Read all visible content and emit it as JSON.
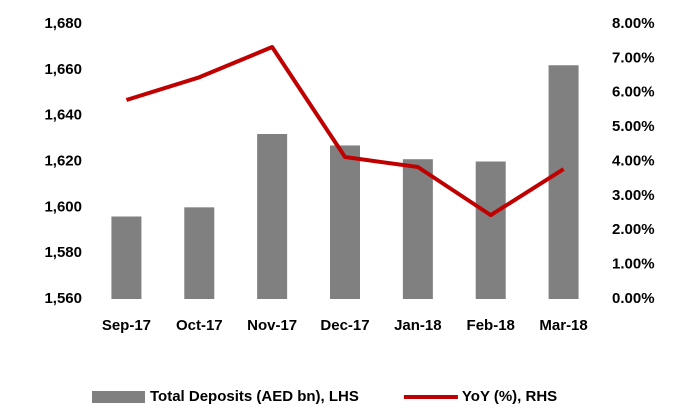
{
  "chart_data": {
    "type": "bar",
    "categories": [
      "Sep-17",
      "Oct-17",
      "Nov-17",
      "Dec-17",
      "Jan-18",
      "Feb-18",
      "Mar-18"
    ],
    "series": [
      {
        "name": "Total Deposits (AED bn), LHS",
        "type": "bar",
        "color": "#808080",
        "axis": "y",
        "values": [
          1596,
          1600,
          1632,
          1627,
          1621,
          1620,
          1662
        ]
      },
      {
        "name": "YoY (%), RHS",
        "type": "line",
        "color": "#c00000",
        "axis": "y2",
        "values": [
          5.79,
          6.45,
          7.33,
          4.13,
          3.84,
          2.44,
          3.78
        ]
      }
    ],
    "ylim": [
      1560,
      1680
    ],
    "yticks": [
      {
        "value": 1560,
        "label": "1,560"
      },
      {
        "value": 1580,
        "label": "1,580"
      },
      {
        "value": 1600,
        "label": "1,600"
      },
      {
        "value": 1620,
        "label": "1,620"
      },
      {
        "value": 1640,
        "label": "1,640"
      },
      {
        "value": 1660,
        "label": "1,660"
      },
      {
        "value": 1680,
        "label": "1,680"
      }
    ],
    "y2lim": [
      0,
      8
    ],
    "y2ticks": [
      {
        "value": 0,
        "label": "0.00%"
      },
      {
        "value": 1,
        "label": "1.00%"
      },
      {
        "value": 2,
        "label": "2.00%"
      },
      {
        "value": 3,
        "label": "3.00%"
      },
      {
        "value": 4,
        "label": "4.00%"
      },
      {
        "value": 5,
        "label": "5.00%"
      },
      {
        "value": 6,
        "label": "6.00%"
      },
      {
        "value": 7,
        "label": "7.00%"
      },
      {
        "value": 8,
        "label": "8.00%"
      }
    ],
    "grid": false,
    "legend": "bottom"
  }
}
